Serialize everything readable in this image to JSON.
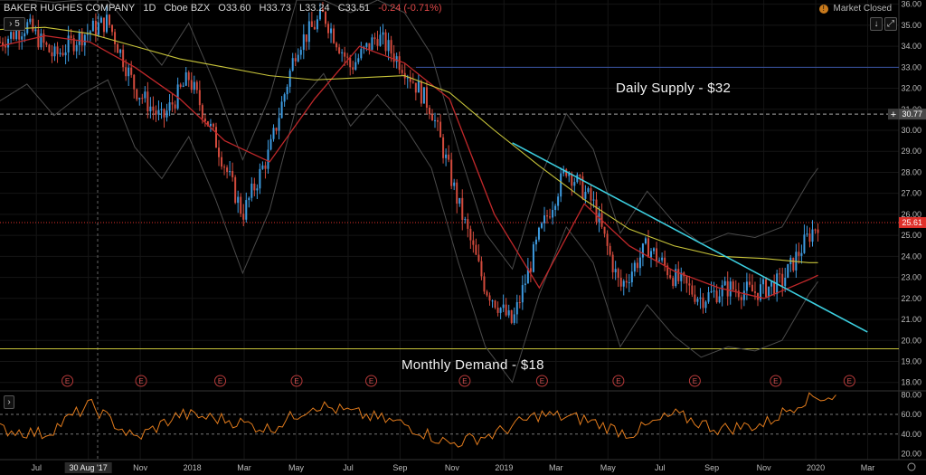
{
  "header": {
    "symbol": "BAKER HUGHES COMPANY",
    "interval": "1D",
    "exchange": "Cboe BZX",
    "open": "O33.60",
    "high": "H33.73",
    "low": "L33.24",
    "close": "C33.51",
    "change": "-0.24 (-0.71%)",
    "market_status": "Market Closed"
  },
  "controls": {
    "collapse_label": "› 5",
    "down_arrow": "↓",
    "expand_arrow": "⤢"
  },
  "annotations": {
    "supply": "Daily Supply - $32",
    "demand": "Monthly Demand - $18"
  },
  "price_tags": {
    "crosshair": "30.77",
    "last": "25.61"
  },
  "colors": {
    "background": "#000000",
    "candle_up": "#3d9be0",
    "candle_down": "#d24a3c",
    "ma_short": "#c0282a",
    "ma_long": "#c8c43a",
    "band": "#4a4a4a",
    "trendline": "#3ccfe0",
    "rsi": "#e07a1c",
    "last_price": "#e0302a"
  },
  "chart_data": [
    {
      "type": "line",
      "title": "BAKER HUGHES COMPANY 1D",
      "x_ticks": [
        "Jul",
        "30 Aug '17",
        "Nov",
        "2018",
        "Mar",
        "May",
        "Jul",
        "Sep",
        "Nov",
        "2019",
        "Mar",
        "May",
        "Jul",
        "Sep",
        "Nov",
        "2020",
        "Mar"
      ],
      "y_ticks": [
        "36.00",
        "35.00",
        "34.00",
        "33.00",
        "32.00",
        "31.00",
        "30.00",
        "29.00",
        "28.00",
        "27.00",
        "26.00",
        "25.00",
        "24.00",
        "23.00",
        "22.00",
        "21.00",
        "20.00",
        "19.00",
        "18.00"
      ],
      "ylim": [
        17.6,
        36.2
      ],
      "event_markers": [
        "E",
        "E",
        "E",
        "E",
        "E",
        "E",
        "E",
        "E",
        "E",
        "E",
        "E"
      ],
      "horizontal_levels": [
        33.0,
        30.77,
        25.61,
        19.6
      ],
      "trendline": [
        {
          "x": 0.57,
          "y": 29.4
        },
        {
          "x": 0.965,
          "y": 20.4
        }
      ],
      "series": [
        {
          "x": [
            0.0,
            0.03,
            0.06,
            0.09,
            0.12,
            0.15,
            0.18,
            0.21,
            0.24,
            0.27,
            0.3,
            0.33,
            0.36,
            0.39,
            0.42,
            0.45,
            0.48,
            0.51,
            0.54,
            0.57,
            0.6,
            0.63,
            0.66,
            0.69,
            0.72,
            0.75,
            0.78,
            0.81,
            0.84,
            0.87,
            0.9,
            0.91
          ],
          "values": [
            34.2,
            35.0,
            33.5,
            34.5,
            35.2,
            32.0,
            30.5,
            32.5,
            29.5,
            26.0,
            29.0,
            34.0,
            35.5,
            33.0,
            34.5,
            33.0,
            31.0,
            26.5,
            22.5,
            20.8,
            25.0,
            28.2,
            26.5,
            22.5,
            24.5,
            23.0,
            22.0,
            22.5,
            22.3,
            22.8,
            25.0,
            25.6
          ]
        },
        {
          "name": "",
          "x": [
            0.0,
            0.05,
            0.1,
            0.15,
            0.2,
            0.25,
            0.3,
            0.35,
            0.4,
            0.45,
            0.5,
            0.55,
            0.6,
            0.65,
            0.7,
            0.75,
            0.8,
            0.85,
            0.9,
            0.91
          ],
          "values": [
            34.0,
            34.5,
            34.2,
            33.0,
            31.5,
            29.5,
            28.5,
            31.5,
            34.0,
            33.2,
            31.5,
            26.0,
            22.5,
            26.5,
            24.5,
            23.3,
            22.5,
            22.0,
            22.9,
            23.1
          ]
        },
        {
          "name": "",
          "x": [
            0.0,
            0.05,
            0.1,
            0.15,
            0.2,
            0.25,
            0.3,
            0.35,
            0.4,
            0.45,
            0.5,
            0.55,
            0.6,
            0.65,
            0.7,
            0.75,
            0.8,
            0.85,
            0.9,
            0.91
          ],
          "values": [
            34.8,
            34.9,
            34.6,
            34.0,
            33.4,
            33.0,
            32.6,
            32.4,
            32.5,
            32.6,
            31.8,
            30.0,
            28.3,
            26.7,
            25.3,
            24.5,
            24.0,
            23.9,
            23.7,
            23.7
          ]
        }
      ]
    },
    {
      "type": "line",
      "y_ticks": [
        "80.00",
        "60.00",
        "40.00",
        "20.00"
      ],
      "ylim": [
        14,
        84
      ],
      "levels": [
        60,
        40
      ],
      "series": [
        {
          "x": [
            0.0,
            0.05,
            0.1,
            0.15,
            0.2,
            0.25,
            0.3,
            0.35,
            0.4,
            0.45,
            0.5,
            0.55,
            0.6,
            0.65,
            0.7,
            0.75,
            0.8,
            0.85,
            0.9,
            0.93
          ],
          "values": [
            45,
            40,
            70,
            35,
            60,
            55,
            45,
            70,
            60,
            50,
            30,
            40,
            60,
            55,
            40,
            60,
            45,
            50,
            78,
            78
          ]
        }
      ]
    }
  ]
}
